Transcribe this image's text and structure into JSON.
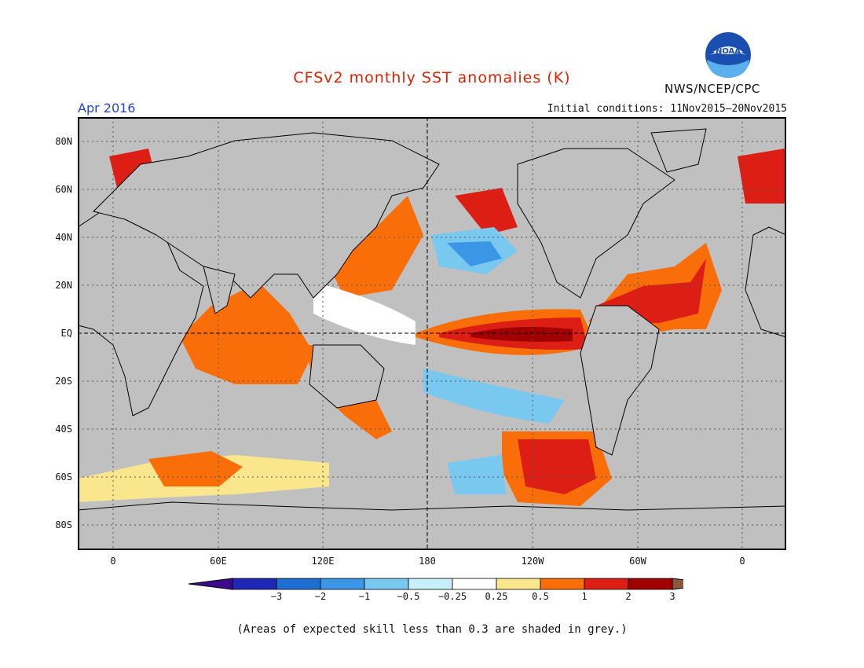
{
  "title": "CFSv2 monthly SST anomalies (K)",
  "month": "Apr 2016",
  "initial_conditions": "Initial conditions: 11Nov2015–20Nov2015",
  "agency": "NWS/NCEP/CPC",
  "logo_text": "NOAA",
  "lat_labels": [
    "80N",
    "60N",
    "40N",
    "20N",
    "EQ",
    "20S",
    "40S",
    "60S",
    "80S"
  ],
  "lon_labels": [
    "0",
    "60E",
    "120E",
    "180",
    "120W",
    "60W",
    "0"
  ],
  "colorbar": {
    "labels": [
      "−3",
      "−2",
      "−1",
      "−0.5",
      "−0.25",
      "0.25",
      "0.5",
      "1",
      "2",
      "3"
    ],
    "colors": [
      "#1e28b4",
      "#1e6ed2",
      "#3c96e6",
      "#78c8f0",
      "#c8f0fa",
      "#ffffff",
      "#fae68c",
      "#fa6e0a",
      "#dc1e14",
      "#a00000",
      "#8b5a3c"
    ],
    "low_arrow_color": "#3c0a8c"
  },
  "footnote": "(Areas of expected skill less than 0.3 are shaded in grey.)",
  "colors": {
    "title": "#dd2200",
    "month": "#2244dd",
    "grey_mask": "#c0c0c0"
  }
}
